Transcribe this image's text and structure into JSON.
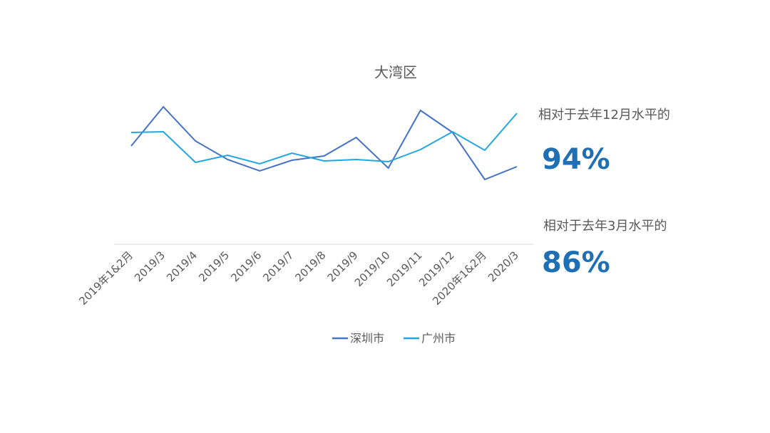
{
  "chart_data": {
    "type": "line",
    "title": "大湾区",
    "categories": [
      "2019年1&2月",
      "2019/3",
      "2019/4",
      "2019/5",
      "2019/6",
      "2019/7",
      "2019/8",
      "2019/9",
      "2019/10",
      "2019/11",
      "2019/12",
      "2020年1&2月",
      "2020/3"
    ],
    "series": [
      {
        "name": "深圳市",
        "color": "#4472c4",
        "values": [
          138,
          193,
          145,
          119,
          103,
          118,
          124,
          150,
          107,
          188,
          157,
          91,
          109
        ]
      },
      {
        "name": "广州市",
        "color": "#22a6e0",
        "values": [
          157,
          158,
          115,
          125,
          113,
          128,
          117,
          119,
          116,
          133,
          158,
          132,
          184
        ]
      }
    ],
    "ylim": [
      0,
      200
    ],
    "annotations": [
      {
        "text": "相对于去年12月水平的",
        "value": "94%"
      },
      {
        "text": "相对于去年3月水平的",
        "value": "86%"
      }
    ],
    "legend": "bottom"
  }
}
